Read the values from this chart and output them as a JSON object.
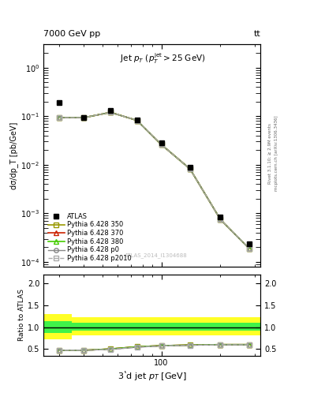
{
  "title_top": "7000 GeV pp",
  "title_right": "tt",
  "plot_title": "Jet $p_T$ ($p_T^{\\mathrm{jet}}>$25 GeV)",
  "ylabel_main": "dσ/dp_T [pb/GeV]",
  "ylabel_ratio": "Ratio to ATLAS",
  "xlabel": "3ʽd jet $p_T$ [GeV]",
  "watermark": "ATLAS_2014_I1304688",
  "right_label": "mcplots.cern.ch [arXiv:1306.3436]",
  "rivet_label": "Rivet 3.1.10; ≥ 2.9M events",
  "x_data": [
    30,
    40,
    55,
    75,
    100,
    140,
    200,
    280
  ],
  "atlas_y": [
    0.19,
    0.095,
    0.13,
    0.085,
    0.028,
    0.009,
    0.00085,
    0.00024
  ],
  "pythia_350_y": [
    0.093,
    0.093,
    0.12,
    0.082,
    0.026,
    0.0082,
    0.00075,
    0.00019
  ],
  "pythia_370_y": [
    0.093,
    0.093,
    0.12,
    0.082,
    0.026,
    0.0082,
    0.00075,
    0.00019
  ],
  "pythia_380_y": [
    0.093,
    0.093,
    0.12,
    0.082,
    0.026,
    0.0082,
    0.00075,
    0.00019
  ],
  "pythia_p0_y": [
    0.093,
    0.093,
    0.12,
    0.082,
    0.026,
    0.0082,
    0.00075,
    0.00019
  ],
  "pythia_p2010_y": [
    0.093,
    0.093,
    0.12,
    0.082,
    0.026,
    0.0082,
    0.00075,
    0.00019
  ],
  "ratio_x": [
    30,
    40,
    55,
    75,
    100,
    140,
    200,
    280
  ],
  "ratio_350": [
    0.47,
    0.47,
    0.5,
    0.55,
    0.575,
    0.59,
    0.6,
    0.6
  ],
  "ratio_370": [
    0.47,
    0.47,
    0.5,
    0.55,
    0.575,
    0.59,
    0.6,
    0.6
  ],
  "ratio_380": [
    0.47,
    0.47,
    0.5,
    0.55,
    0.575,
    0.59,
    0.6,
    0.6
  ],
  "ratio_p0": [
    0.47,
    0.47,
    0.49,
    0.54,
    0.57,
    0.585,
    0.595,
    0.595
  ],
  "ratio_p2010": [
    0.47,
    0.47,
    0.49,
    0.54,
    0.57,
    0.585,
    0.595,
    0.595
  ],
  "band_yellow_xedges": [
    25,
    35,
    65,
    90,
    320
  ],
  "band_yellow_ylow": [
    0.72,
    0.82,
    0.82,
    0.82,
    0.82
  ],
  "band_yellow_yhigh": [
    1.3,
    1.22,
    1.22,
    1.22,
    1.22
  ],
  "band_green_xedges": [
    25,
    35,
    65,
    90,
    320
  ],
  "band_green_ylow": [
    0.87,
    0.92,
    0.92,
    0.92,
    0.92
  ],
  "band_green_yhigh": [
    1.13,
    1.1,
    1.1,
    1.1,
    1.1
  ],
  "color_350": "#999900",
  "color_370": "#cc2200",
  "color_380": "#44cc00",
  "color_p0": "#888888",
  "color_p2010": "#aaaaaa",
  "color_atlas": "#000000",
  "xlim": [
    25,
    320
  ],
  "ylim_main": [
    8e-05,
    3.0
  ],
  "ylim_ratio": [
    0.35,
    2.2
  ],
  "ratio_yticks": [
    0.5,
    1.0,
    1.5,
    2.0
  ]
}
